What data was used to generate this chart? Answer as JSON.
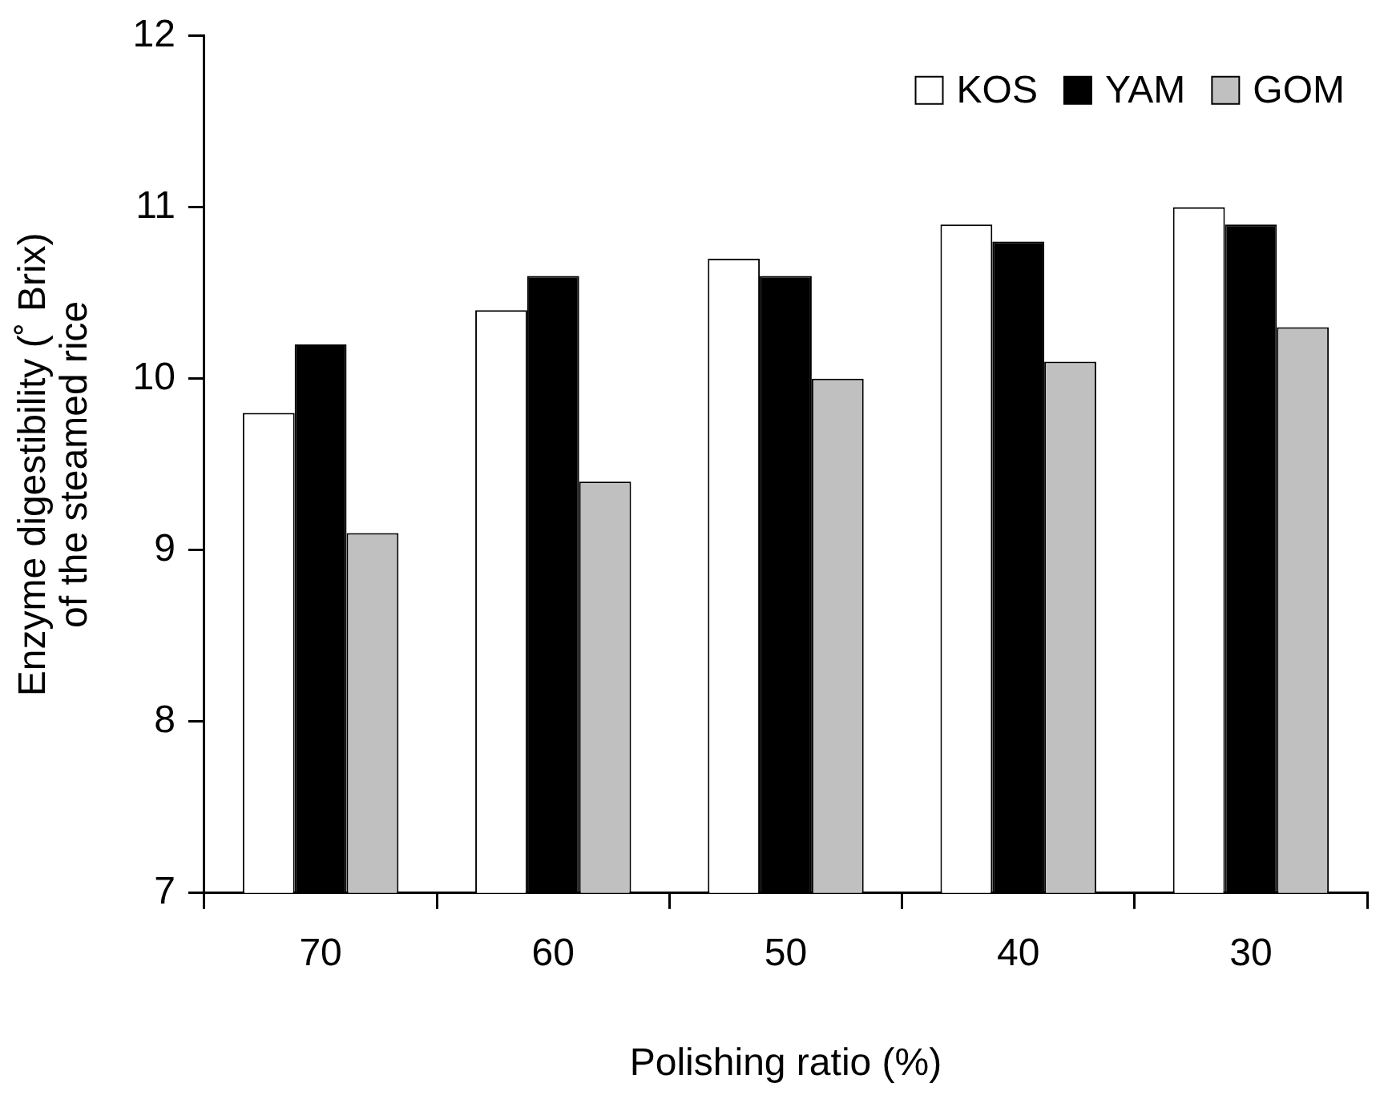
{
  "chart_data": {
    "type": "bar",
    "xlabel": "Polishing ratio (%)",
    "ylabel": "Enzyme digestibility (˚ Brix)\nof the steamed rice",
    "categories": [
      "70",
      "60",
      "50",
      "40",
      "30"
    ],
    "series": [
      {
        "name": "KOS",
        "color": "#ffffff",
        "values": [
          9.8,
          10.4,
          10.7,
          10.9,
          11.0
        ]
      },
      {
        "name": "YAM",
        "color": "#000000",
        "values": [
          10.2,
          10.6,
          10.6,
          10.8,
          10.9
        ]
      },
      {
        "name": "GOM",
        "color": "#c0c0c0",
        "values": [
          9.1,
          9.4,
          10.0,
          10.1,
          10.3
        ]
      }
    ],
    "ylim": [
      7,
      12
    ],
    "yticks": [
      7,
      8,
      9,
      10,
      11,
      12
    ],
    "grid": false,
    "legend": "top right"
  }
}
